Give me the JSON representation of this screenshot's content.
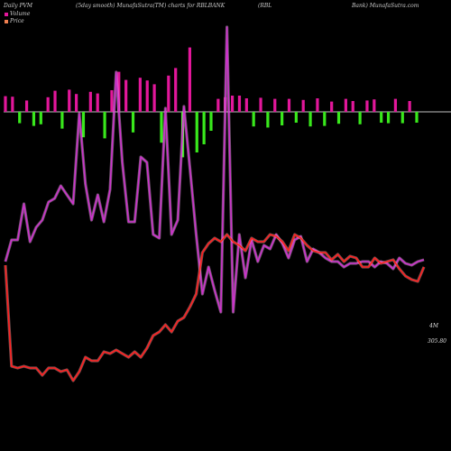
{
  "header": {
    "left": "Daily PVM",
    "title": "(5day smooth) MunafaSutra(TM) charts for RBLBANK",
    "right1": "(RBL",
    "right2": "Bank) MunafaSutra.com"
  },
  "legend": {
    "volume_label": "Volume",
    "price_label": "Price"
  },
  "colors": {
    "background": "#000000",
    "volume_up": "#e3179b",
    "volume_down": "#39e81c",
    "volume_line": "#cc33cc",
    "price_line": "#ff2020",
    "zero_line": "#ffffff"
  },
  "chart_data": {
    "type": "line",
    "series": [
      {
        "name": "Volume",
        "values": [
          14.5,
          13.3,
          13.3,
          11.3,
          13.4,
          12.6,
          12.2,
          11.2,
          11.0,
          10.3,
          10.8,
          11.3,
          6.3,
          10.2,
          12.2,
          10.8,
          12.3,
          10.5,
          4.0,
          9.0,
          12.3,
          12.3,
          8.7,
          9.0,
          13.0,
          13.2,
          6.0,
          13.0,
          12.2,
          5.9,
          9.4,
          13.0,
          16.3,
          14.8,
          16.1,
          17.3,
          1.5,
          17.3,
          13.0,
          15.4,
          13.3,
          14.5,
          13.6,
          13.8,
          13.0,
          13.5,
          14.3,
          13.3,
          13.1,
          14.5,
          13.8,
          14.0,
          14.3,
          14.5,
          14.5,
          14.8,
          14.6,
          14.6,
          14.5,
          14.5,
          14.8,
          14.5,
          14.6,
          14.9,
          14.3,
          14.6,
          14.7,
          14.5,
          14.4
        ]
      },
      {
        "name": "Price",
        "values": [
          14.7,
          20.3,
          20.4,
          20.3,
          20.4,
          20.4,
          20.8,
          20.4,
          20.4,
          20.6,
          20.5,
          21.1,
          20.6,
          19.8,
          20.0,
          20.0,
          19.5,
          19.6,
          19.4,
          19.6,
          19.8,
          19.5,
          19.8,
          19.3,
          18.6,
          18.4,
          18.0,
          18.4,
          17.8,
          17.6,
          17.0,
          16.3,
          14.0,
          13.5,
          13.2,
          13.4,
          13.0,
          13.4,
          13.6,
          13.9,
          13.2,
          13.4,
          13.4,
          13.0,
          13.1,
          13.4,
          13.9,
          13.0,
          13.2,
          13.6,
          13.9,
          14.0,
          14.0,
          14.4,
          14.1,
          14.5,
          14.2,
          14.3,
          14.8,
          14.8,
          14.3,
          14.6,
          14.5,
          14.4,
          14.9,
          15.3,
          15.5,
          15.6,
          14.8
        ]
      }
    ],
    "pvm_bars": [
      2.9,
      2.8,
      2.1,
      2.1,
      2.6,
      2.3,
      2.7,
      3.9,
      3.1,
      4.1,
      3.3,
      4.7,
      3.7,
      3.4,
      4.9,
      4.0,
      7.4,
      5.9,
      3.8,
      6.3,
      5.8,
      5.1,
      5.7,
      6.7,
      8.1,
      8.4,
      11.9,
      7.5,
      6.0,
      3.5,
      2.4,
      2.7,
      3.0,
      3.0,
      2.5,
      2.7,
      2.6,
      2.9,
      2.4,
      2.5,
      2.4,
      2.0,
      2.2,
      2.7,
      2.5,
      2.6,
      1.9,
      2.2,
      2.4,
      2.0,
      2.3,
      2.1,
      2.3,
      2.0,
      2.1,
      2.4,
      2.1,
      2.0,
      2.0
    ],
    "pvm_direction": [
      "up",
      "up",
      "down",
      "up",
      "down",
      "down",
      "up",
      "up",
      "down",
      "up",
      "up",
      "down",
      "up",
      "up",
      "down",
      "up",
      "up",
      "up",
      "down",
      "up",
      "up",
      "up",
      "down",
      "up",
      "up",
      "down",
      "up",
      "down",
      "down",
      "down",
      "up",
      "up",
      "up",
      "up",
      "up",
      "down",
      "up",
      "down",
      "up",
      "down",
      "up",
      "down",
      "up",
      "down",
      "up",
      "down",
      "up",
      "down",
      "up",
      "up",
      "down",
      "up",
      "up",
      "down",
      "down",
      "up",
      "down",
      "up",
      "down"
    ],
    "labels": {
      "volume_end": "4M",
      "price_end": "305.80"
    }
  }
}
